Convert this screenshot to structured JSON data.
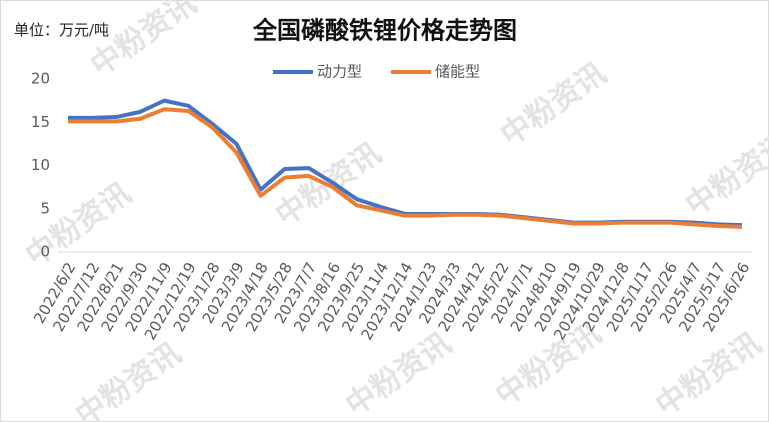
{
  "chart_data": {
    "type": "line",
    "title": "全国磷酸铁锂价格走势图",
    "unit_label": "单位：万元/吨",
    "watermark": "中粉资讯",
    "categories": [
      "2022/6/2",
      "2022/7/12",
      "2022/8/21",
      "2022/9/30",
      "2022/11/9",
      "2022/12/19",
      "2023/1/28",
      "2023/3/9",
      "2023/4/18",
      "2023/5/28",
      "2023/7/7",
      "2023/8/16",
      "2023/9/25",
      "2023/11/4",
      "2023/12/14",
      "2024/1/23",
      "2024/3/3",
      "2024/4/12",
      "2024/5/22",
      "2024/7/1",
      "2024/8/10",
      "2024/9/19",
      "2024/10/29",
      "2024/12/8",
      "2025/1/17",
      "2025/2/26",
      "2025/4/7",
      "2025/5/17",
      "2025/6/26"
    ],
    "series": [
      {
        "name": "动力型",
        "color": "#4472c4",
        "values": [
          15.5,
          15.5,
          15.6,
          16.2,
          17.5,
          16.9,
          14.8,
          12.5,
          7.2,
          9.6,
          9.7,
          8.0,
          6.1,
          5.2,
          4.4,
          4.4,
          4.4,
          4.4,
          4.3,
          4.0,
          3.7,
          3.4,
          3.4,
          3.5,
          3.5,
          3.5,
          3.4,
          3.2,
          3.1
        ]
      },
      {
        "name": "储能型",
        "color": "#ed7d31",
        "values": [
          15.1,
          15.1,
          15.1,
          15.4,
          16.5,
          16.3,
          14.4,
          11.5,
          6.5,
          8.6,
          8.8,
          7.5,
          5.4,
          4.8,
          4.2,
          4.2,
          4.3,
          4.3,
          4.2,
          3.9,
          3.6,
          3.3,
          3.3,
          3.4,
          3.4,
          3.4,
          3.2,
          3.0,
          2.9
        ]
      }
    ],
    "ylim": [
      0,
      20
    ],
    "yticks": [
      0,
      5,
      10,
      15,
      20
    ],
    "grid": false,
    "legend": "top"
  }
}
